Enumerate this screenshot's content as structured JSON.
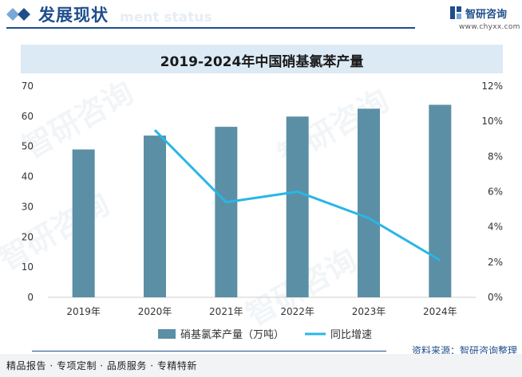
{
  "header": {
    "title": "发展现状",
    "subtitle_ghost": "ment status"
  },
  "brand": {
    "name": "智研咨询",
    "url": "www.chyxx.com"
  },
  "watermark": "智研咨询",
  "chart_data": {
    "type": "bar",
    "title": "2019-2024年中国硝基氯苯产量",
    "categories": [
      "2019年",
      "2020年",
      "2021年",
      "2022年",
      "2023年",
      "2024年"
    ],
    "series": [
      {
        "name": "硝基氯苯产量（万吨）",
        "type": "bar",
        "axis": "left",
        "color": "#5b8fa5",
        "values": [
          49.0,
          53.6,
          56.5,
          59.9,
          62.5,
          63.8
        ]
      },
      {
        "name": "同比增速",
        "type": "line",
        "axis": "right",
        "color": "#29b6e6",
        "values": [
          null,
          9.5,
          5.4,
          6.0,
          4.5,
          2.1
        ]
      }
    ],
    "y_left": {
      "min": 0,
      "max": 70,
      "ticks": [
        "0",
        "10",
        "20",
        "30",
        "40",
        "50",
        "60",
        "70"
      ]
    },
    "y_right": {
      "min": 0,
      "max": 12,
      "ticks": [
        "0%",
        "2%",
        "4%",
        "6%",
        "8%",
        "10%",
        "12%"
      ]
    },
    "legend_position": "bottom"
  },
  "footer": {
    "source": "资料来源：智研咨询整理",
    "slogan": "精品报告 · 专项定制 · 品质服务 · 专精特新"
  },
  "colors": {
    "brand_blue": "#1f4e8c",
    "bar": "#5b8fa5",
    "line": "#29b6e6",
    "title_bar_bg": "#dceaf5"
  }
}
